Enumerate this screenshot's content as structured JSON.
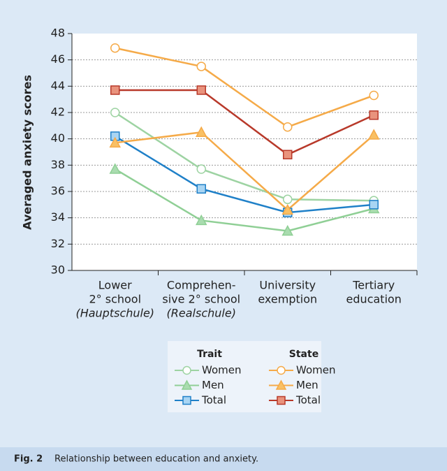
{
  "chart_data": {
    "type": "line",
    "y_label": "Averaged anxiety scores",
    "categories": [
      [
        "Lower",
        "2° school",
        "(Hauptschule)"
      ],
      [
        "Comprehen-",
        "sive 2° school",
        "(Realschule)"
      ],
      [
        "University",
        "exemption"
      ],
      [
        "Tertiary",
        "education"
      ]
    ],
    "ylim": [
      30,
      48
    ],
    "yticks": [
      30,
      32,
      34,
      36,
      38,
      40,
      42,
      44,
      46,
      48
    ],
    "grid": true,
    "series_groups": [
      {
        "title": "Trait",
        "series": [
          {
            "name": "Women",
            "color": "#9dd3a2",
            "fill": "#ffffff",
            "marker": "circle",
            "values": [
              42.0,
              37.7,
              35.4,
              35.3
            ]
          },
          {
            "name": "Men",
            "color": "#8fcf95",
            "fill": "#a9dcaf",
            "marker": "triangle",
            "values": [
              37.7,
              33.8,
              33.0,
              34.7
            ]
          },
          {
            "name": "Total",
            "color": "#1f80c8",
            "fill": "#a9d5f3",
            "marker": "square",
            "values": [
              40.2,
              36.2,
              34.4,
              35.0
            ]
          }
        ]
      },
      {
        "title": "State",
        "series": [
          {
            "name": "Women",
            "color": "#f5aa48",
            "fill": "#ffffff",
            "marker": "circle",
            "values": [
              46.9,
              45.5,
              40.9,
              43.3
            ]
          },
          {
            "name": "Men",
            "color": "#f5aa48",
            "fill": "#f9c064",
            "marker": "triangle",
            "values": [
              39.7,
              40.5,
              34.6,
              40.3
            ]
          },
          {
            "name": "Total",
            "color": "#b8392a",
            "fill": "#e9937d",
            "marker": "square",
            "values": [
              43.7,
              43.7,
              38.8,
              41.8
            ]
          }
        ]
      }
    ]
  },
  "caption": {
    "label": "Fig. 2",
    "text": "Relationship between education and anxiety."
  }
}
